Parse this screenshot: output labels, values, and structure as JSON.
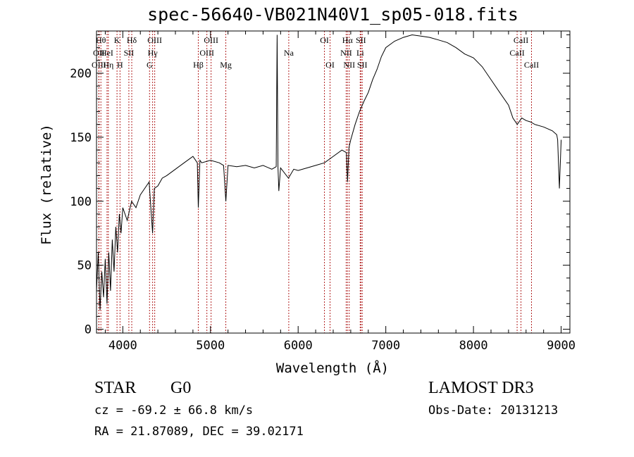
{
  "chart_data": {
    "type": "line",
    "title": "spec-56640-VB021N40V1_sp05-018.fits",
    "xlabel": "Wavelength (Å)",
    "ylabel": "Flux (relative)",
    "xlim": [
      3700,
      9100
    ],
    "ylim": [
      -3,
      233
    ],
    "xticks": [
      4000,
      5000,
      6000,
      7000,
      8000,
      9000
    ],
    "yticks": [
      0,
      50,
      100,
      150,
      200
    ],
    "series": [
      {
        "name": "spectrum",
        "x": [
          3700,
          3720,
          3740,
          3760,
          3780,
          3800,
          3820,
          3840,
          3860,
          3880,
          3900,
          3920,
          3940,
          3960,
          3980,
          4000,
          4050,
          4100,
          4150,
          4200,
          4250,
          4300,
          4340,
          4360,
          4400,
          4450,
          4500,
          4600,
          4700,
          4800,
          4850,
          4861,
          4880,
          4900,
          5000,
          5100,
          5150,
          5175,
          5200,
          5300,
          5400,
          5500,
          5600,
          5700,
          5750,
          5760,
          5770,
          5780,
          5800,
          5890,
          5950,
          6000,
          6100,
          6200,
          6300,
          6400,
          6500,
          6550,
          6563,
          6580,
          6600,
          6650,
          6700,
          6750,
          6800,
          6850,
          6900,
          6950,
          7000,
          7100,
          7200,
          7300,
          7400,
          7500,
          7600,
          7700,
          7800,
          7900,
          8000,
          8100,
          8200,
          8300,
          8400,
          8450,
          8500,
          8550,
          8600,
          8650,
          8700,
          8800,
          8900,
          8950,
          8960,
          8980,
          9000
        ],
        "y": [
          30,
          60,
          15,
          45,
          25,
          55,
          20,
          60,
          30,
          70,
          45,
          80,
          60,
          90,
          75,
          95,
          85,
          100,
          95,
          105,
          110,
          115,
          75,
          110,
          112,
          118,
          120,
          125,
          130,
          135,
          130,
          95,
          132,
          130,
          132,
          130,
          128,
          100,
          128,
          127,
          128,
          126,
          128,
          125,
          127,
          230,
          127,
          108,
          126,
          118,
          125,
          124,
          126,
          128,
          130,
          135,
          140,
          138,
          115,
          142,
          148,
          160,
          170,
          178,
          185,
          195,
          203,
          213,
          220,
          225,
          228,
          230,
          229,
          228,
          226,
          224,
          220,
          215,
          212,
          205,
          195,
          185,
          175,
          165,
          160,
          165,
          163,
          162,
          160,
          158,
          155,
          152,
          148,
          110,
          148
        ]
      }
    ],
    "lines": [
      {
        "name": "OII",
        "wl": 3727,
        "row": 1
      },
      {
        "name": "OIII",
        "wl": 3727,
        "row": 2
      },
      {
        "name": "Hθ",
        "wl": 3750,
        "row": 0
      },
      {
        "name": "HeI",
        "wl": 3820,
        "row": 1
      },
      {
        "name": "Hη",
        "wl": 3835,
        "row": 2
      },
      {
        "name": "K",
        "wl": 3934,
        "row": 0
      },
      {
        "name": "H",
        "wl": 3968,
        "row": 2
      },
      {
        "name": "SII",
        "wl": 4069,
        "row": 1
      },
      {
        "name": "Hδ",
        "wl": 4102,
        "row": 0
      },
      {
        "name": "OIII",
        "wl": 4364,
        "row": 0
      },
      {
        "name": "Hγ",
        "wl": 4340,
        "row": 1
      },
      {
        "name": "G",
        "wl": 4305,
        "row": 2
      },
      {
        "name": "Hβ",
        "wl": 4861,
        "row": 2
      },
      {
        "name": "OIII",
        "wl": 5007,
        "row": 0
      },
      {
        "name": "OIII",
        "wl": 4959,
        "row": 1
      },
      {
        "name": "Mg",
        "wl": 5175,
        "row": 2
      },
      {
        "name": "Na",
        "wl": 5893,
        "row": 1
      },
      {
        "name": "OI",
        "wl": 6300,
        "row": 0
      },
      {
        "name": "OI",
        "wl": 6364,
        "row": 2
      },
      {
        "name": "Hα",
        "wl": 6563,
        "row": 0
      },
      {
        "name": "NII",
        "wl": 6548,
        "row": 1
      },
      {
        "name": "NII",
        "wl": 6583,
        "row": 2
      },
      {
        "name": "SII",
        "wl": 6716,
        "row": 0
      },
      {
        "name": "Li",
        "wl": 6708,
        "row": 1
      },
      {
        "name": "SII",
        "wl": 6731,
        "row": 2
      },
      {
        "name": "CaII",
        "wl": 8542,
        "row": 0
      },
      {
        "name": "CaII",
        "wl": 8498,
        "row": 1
      },
      {
        "name": "CaII",
        "wl": 8662,
        "row": 2
      }
    ]
  },
  "info": {
    "object_class": "STAR",
    "subclass": "G0",
    "cz": "cz = -69.2 ± 66.8 km/s",
    "coords": "RA =  21.87089, DEC =  39.02171",
    "survey": "LAMOST DR3",
    "obs_date": "Obs-Date: 20131213"
  }
}
